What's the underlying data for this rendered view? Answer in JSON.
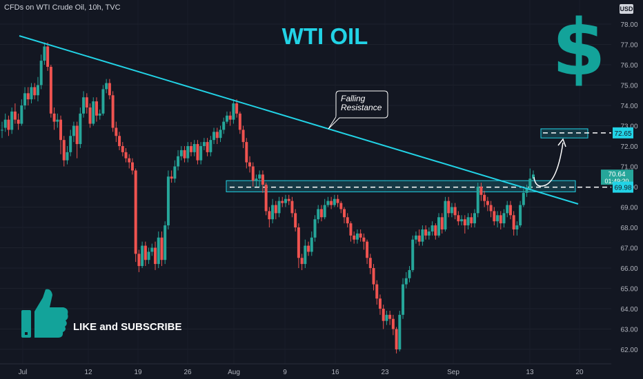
{
  "header": {
    "symbol_text": "CFDs on WTI Crude Oil, 10h, TVC",
    "currency": "USD"
  },
  "title": "WTI OIL",
  "brand_symbol": "$",
  "cta_text": "LIKE and SUBSCRIBE",
  "annotation": {
    "line1": "Falling",
    "line2": "Resistance"
  },
  "colors": {
    "up": "#26a69a",
    "down": "#ef5350",
    "trendline": "#22d3e6",
    "background": "#131722",
    "dollar": "#13a39a"
  },
  "icons": {
    "thumb": "thumbs-up-icon"
  },
  "chart_data": {
    "type": "candlestick",
    "ylim": [
      61.7,
      79.0
    ],
    "yticks": [
      "62.00",
      "63.00",
      "64.00",
      "65.00",
      "66.00",
      "67.00",
      "68.00",
      "69.00",
      "70.00",
      "71.00",
      "72.00",
      "73.00",
      "74.00",
      "75.00",
      "76.00",
      "77.00",
      "78.00"
    ],
    "xticks": [
      "Jul",
      "12",
      "19",
      "26",
      "Aug",
      "9",
      "16",
      "23",
      "Sep",
      "13",
      "20"
    ],
    "price_labels": [
      {
        "text": "72.65",
        "value": 72.65
      },
      {
        "text": "70.64",
        "value": 70.64,
        "extra": "01:49:20"
      },
      {
        "text": "69.98",
        "value": 69.98
      }
    ],
    "trendline": {
      "name": "Falling Resistance",
      "from": [
        "Jul",
        77.5
      ],
      "to": [
        "Sep 13",
        69.3
      ]
    },
    "zones": [
      {
        "low": 69.75,
        "high": 70.3,
        "dashed_level": 69.98
      },
      {
        "low": 72.4,
        "high": 72.85,
        "dashed_level": 72.65
      }
    ],
    "candles": [
      [
        72.8,
        72.8,
        73.2,
        72.4
      ],
      [
        72.9,
        73.3,
        73.6,
        72.7
      ],
      [
        73.3,
        72.8,
        73.5,
        72.5
      ],
      [
        72.8,
        73.7,
        73.9,
        72.6
      ],
      [
        73.7,
        73.3,
        74.1,
        73.1
      ],
      [
        73.3,
        73.1,
        73.6,
        72.8
      ],
      [
        73.1,
        74.0,
        74.3,
        73.0
      ],
      [
        74.0,
        74.6,
        74.9,
        73.8
      ],
      [
        74.6,
        74.3,
        74.9,
        74.0
      ],
      [
        74.3,
        74.9,
        75.1,
        74.1
      ],
      [
        74.9,
        74.5,
        75.1,
        74.3
      ],
      [
        74.5,
        75.0,
        75.4,
        74.2
      ],
      [
        75.0,
        76.2,
        76.5,
        74.8
      ],
      [
        76.2,
        76.9,
        77.1,
        76.0
      ],
      [
        76.9,
        75.9,
        77.1,
        75.7
      ],
      [
        75.9,
        73.6,
        76.0,
        73.4
      ],
      [
        73.6,
        73.2,
        73.9,
        72.8
      ],
      [
        73.2,
        73.3,
        73.6,
        72.9
      ],
      [
        73.3,
        72.3,
        73.5,
        71.6
      ],
      [
        72.3,
        71.3,
        72.5,
        71.0
      ],
      [
        71.3,
        71.7,
        72.0,
        71.1
      ],
      [
        71.7,
        72.5,
        72.8,
        71.5
      ],
      [
        72.5,
        73.0,
        73.2,
        72.2
      ],
      [
        73.0,
        72.1,
        73.2,
        71.4
      ],
      [
        72.1,
        73.6,
        73.9,
        71.9
      ],
      [
        73.6,
        74.4,
        74.7,
        73.4
      ],
      [
        74.4,
        73.9,
        74.6,
        73.6
      ],
      [
        73.9,
        73.1,
        74.1,
        72.9
      ],
      [
        73.1,
        74.2,
        74.4,
        73.0
      ],
      [
        74.2,
        73.5,
        74.4,
        73.2
      ],
      [
        73.5,
        73.6,
        73.8,
        73.3
      ],
      [
        73.6,
        74.8,
        75.0,
        73.5
      ],
      [
        74.8,
        75.1,
        75.3,
        74.6
      ],
      [
        75.1,
        74.5,
        75.3,
        74.3
      ],
      [
        74.5,
        72.9,
        74.7,
        72.7
      ],
      [
        72.9,
        72.5,
        73.2,
        72.2
      ],
      [
        72.5,
        72.0,
        72.7,
        71.8
      ],
      [
        72.0,
        71.7,
        72.2,
        71.5
      ],
      [
        71.7,
        71.4,
        71.9,
        71.2
      ],
      [
        71.4,
        71.2,
        71.6,
        70.9
      ],
      [
        71.2,
        70.8,
        71.4,
        70.6
      ],
      [
        70.8,
        66.7,
        70.9,
        66.3
      ],
      [
        66.7,
        66.1,
        66.9,
        65.8
      ],
      [
        66.1,
        67.1,
        67.3,
        66.0
      ],
      [
        67.1,
        66.4,
        67.3,
        66.1
      ],
      [
        66.4,
        66.8,
        67.0,
        66.2
      ],
      [
        66.8,
        67.0,
        67.2,
        66.6
      ],
      [
        67.0,
        66.2,
        67.3,
        65.9
      ],
      [
        66.2,
        67.5,
        67.8,
        66.0
      ],
      [
        67.5,
        66.4,
        67.8,
        66.1
      ],
      [
        66.4,
        68.1,
        68.3,
        66.2
      ],
      [
        68.1,
        70.5,
        70.8,
        67.9
      ],
      [
        70.5,
        70.4,
        70.8,
        70.2
      ],
      [
        70.4,
        71.0,
        71.3,
        70.2
      ],
      [
        71.0,
        71.5,
        71.8,
        70.8
      ],
      [
        71.5,
        71.8,
        72.0,
        71.3
      ],
      [
        71.8,
        71.4,
        72.0,
        71.2
      ],
      [
        71.4,
        72.0,
        72.2,
        71.2
      ],
      [
        72.0,
        71.7,
        72.2,
        71.5
      ],
      [
        71.7,
        72.1,
        72.3,
        71.5
      ],
      [
        72.1,
        71.3,
        72.3,
        71.1
      ],
      [
        71.3,
        72.0,
        72.2,
        71.1
      ],
      [
        72.0,
        72.2,
        72.4,
        71.8
      ],
      [
        72.2,
        71.7,
        72.4,
        71.5
      ],
      [
        71.7,
        72.3,
        72.5,
        71.5
      ],
      [
        72.3,
        72.7,
        72.9,
        72.1
      ],
      [
        72.7,
        72.4,
        72.9,
        72.1
      ],
      [
        72.4,
        72.8,
        73.0,
        72.2
      ],
      [
        72.8,
        73.2,
        73.4,
        72.6
      ],
      [
        73.2,
        73.5,
        73.7,
        73.1
      ],
      [
        73.5,
        73.3,
        73.7,
        73.0
      ],
      [
        73.3,
        74.1,
        74.3,
        73.1
      ],
      [
        74.1,
        73.6,
        74.3,
        73.4
      ],
      [
        73.6,
        72.8,
        73.7,
        72.6
      ],
      [
        72.8,
        72.2,
        73.0,
        71.9
      ],
      [
        72.2,
        71.2,
        72.4,
        70.9
      ],
      [
        71.2,
        71.0,
        71.5,
        70.7
      ],
      [
        71.0,
        70.3,
        71.2,
        70.0
      ],
      [
        70.3,
        70.4,
        70.6,
        70.0
      ],
      [
        70.4,
        70.6,
        70.8,
        70.0
      ],
      [
        70.6,
        70.1,
        70.8,
        69.7
      ],
      [
        70.1,
        68.8,
        70.2,
        68.6
      ],
      [
        68.8,
        68.4,
        69.0,
        68.0
      ],
      [
        68.4,
        69.1,
        69.4,
        68.2
      ],
      [
        69.1,
        68.7,
        69.3,
        68.4
      ],
      [
        68.7,
        69.3,
        69.5,
        68.5
      ],
      [
        69.3,
        69.2,
        69.5,
        69.0
      ],
      [
        69.2,
        69.4,
        69.6,
        69.0
      ],
      [
        69.4,
        69.3,
        69.6,
        69.1
      ],
      [
        69.3,
        68.7,
        69.5,
        68.5
      ],
      [
        68.7,
        68.0,
        68.9,
        67.8
      ],
      [
        68.0,
        66.5,
        68.2,
        66.0
      ],
      [
        66.5,
        66.2,
        66.7,
        65.9
      ],
      [
        66.2,
        67.1,
        67.4,
        66.0
      ],
      [
        67.1,
        66.8,
        67.3,
        66.6
      ],
      [
        66.8,
        67.5,
        67.8,
        66.6
      ],
      [
        67.5,
        68.4,
        68.6,
        67.3
      ],
      [
        68.4,
        68.9,
        69.1,
        68.2
      ],
      [
        68.9,
        68.5,
        69.1,
        68.3
      ],
      [
        68.5,
        69.1,
        69.4,
        68.4
      ],
      [
        69.1,
        69.3,
        69.5,
        69.0
      ],
      [
        69.3,
        69.1,
        69.5,
        68.9
      ],
      [
        69.1,
        69.4,
        69.6,
        69.0
      ],
      [
        69.4,
        69.2,
        69.6,
        69.0
      ],
      [
        69.2,
        68.9,
        69.3,
        68.7
      ],
      [
        68.9,
        68.5,
        69.0,
        68.2
      ],
      [
        68.5,
        68.2,
        68.7,
        68.0
      ],
      [
        68.2,
        67.6,
        68.3,
        67.3
      ],
      [
        67.6,
        67.4,
        67.8,
        67.2
      ],
      [
        67.4,
        67.7,
        67.9,
        67.2
      ],
      [
        67.7,
        67.5,
        67.9,
        67.3
      ],
      [
        67.5,
        67.3,
        67.7,
        66.9
      ],
      [
        67.3,
        66.5,
        67.4,
        66.2
      ],
      [
        66.5,
        66.0,
        66.7,
        65.7
      ],
      [
        66.0,
        65.2,
        66.2,
        64.9
      ],
      [
        65.2,
        64.5,
        65.4,
        64.2
      ],
      [
        64.5,
        64.0,
        64.7,
        63.7
      ],
      [
        64.0,
        63.4,
        64.2,
        63.0
      ],
      [
        63.4,
        63.7,
        63.9,
        63.2
      ],
      [
        63.7,
        63.5,
        63.9,
        63.2
      ],
      [
        63.5,
        63.0,
        63.7,
        62.7
      ],
      [
        63.0,
        62.0,
        63.1,
        61.8
      ],
      [
        62.0,
        63.7,
        63.9,
        61.9
      ],
      [
        63.7,
        65.2,
        65.5,
        63.5
      ],
      [
        65.2,
        65.5,
        65.8,
        65.0
      ],
      [
        65.5,
        65.9,
        66.1,
        65.3
      ],
      [
        65.9,
        67.4,
        67.6,
        65.8
      ],
      [
        67.4,
        67.6,
        67.8,
        67.2
      ],
      [
        67.6,
        67.3,
        67.9,
        67.1
      ],
      [
        67.3,
        67.9,
        68.1,
        67.1
      ],
      [
        67.9,
        67.6,
        68.1,
        67.4
      ],
      [
        67.6,
        67.8,
        68.0,
        67.4
      ],
      [
        67.8,
        68.1,
        68.3,
        67.6
      ],
      [
        68.1,
        67.6,
        68.2,
        67.4
      ],
      [
        67.6,
        68.5,
        68.7,
        67.5
      ],
      [
        68.5,
        67.9,
        68.7,
        67.7
      ],
      [
        67.9,
        69.3,
        69.5,
        67.8
      ],
      [
        69.3,
        68.7,
        69.5,
        68.5
      ],
      [
        68.7,
        69.0,
        69.2,
        68.5
      ],
      [
        69.0,
        68.6,
        69.2,
        68.4
      ],
      [
        68.6,
        68.3,
        68.8,
        68.1
      ],
      [
        68.3,
        68.4,
        68.6,
        68.1
      ],
      [
        68.4,
        68.1,
        68.6,
        67.7
      ],
      [
        68.1,
        68.5,
        68.7,
        67.9
      ],
      [
        68.5,
        68.2,
        68.7,
        68.0
      ],
      [
        68.2,
        68.7,
        68.9,
        68.0
      ],
      [
        68.7,
        70.0,
        70.2,
        68.5
      ],
      [
        70.0,
        69.6,
        70.2,
        69.3
      ],
      [
        69.6,
        69.3,
        69.8,
        69.0
      ],
      [
        69.3,
        69.1,
        69.5,
        68.8
      ],
      [
        69.1,
        68.8,
        69.3,
        68.5
      ],
      [
        68.8,
        68.3,
        69.0,
        68.1
      ],
      [
        68.3,
        68.6,
        68.8,
        68.0
      ],
      [
        68.6,
        68.2,
        68.8,
        67.9
      ],
      [
        68.2,
        68.7,
        68.9,
        68.0
      ],
      [
        68.7,
        69.1,
        69.3,
        68.5
      ],
      [
        69.1,
        68.6,
        69.3,
        68.4
      ],
      [
        68.6,
        67.9,
        68.8,
        67.6
      ],
      [
        67.9,
        68.1,
        68.3,
        67.6
      ],
      [
        68.1,
        69.1,
        69.3,
        68.0
      ],
      [
        69.1,
        69.7,
        69.9,
        69.0
      ],
      [
        69.7,
        69.9,
        70.1,
        69.5
      ],
      [
        69.9,
        70.4,
        70.9,
        69.8
      ],
      [
        70.4,
        70.6,
        70.8,
        70.3
      ]
    ]
  }
}
